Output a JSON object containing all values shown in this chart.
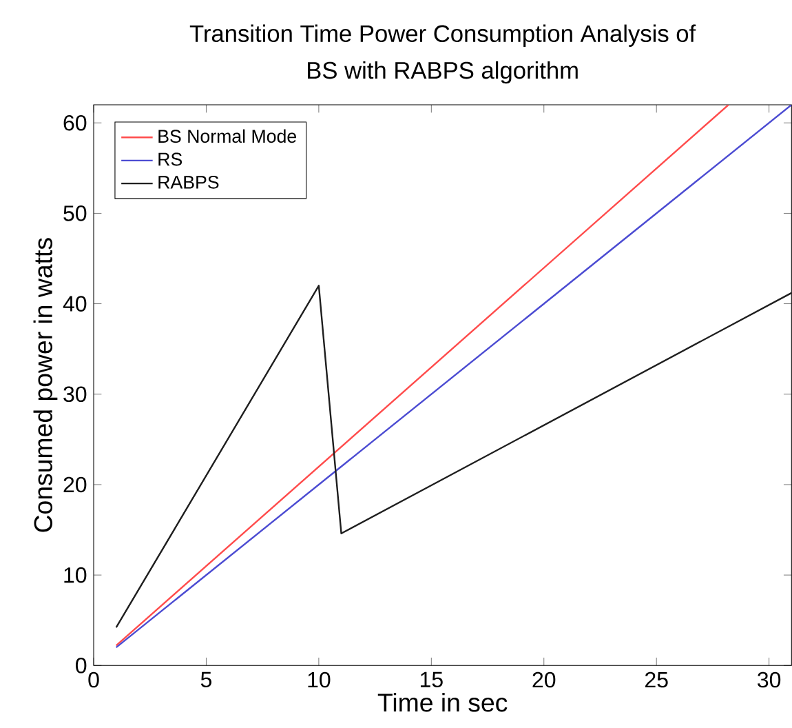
{
  "chart_data": {
    "type": "line",
    "title": "Transition Time Power Consumption Analysis of\nBS with RABPS algorithm",
    "xlabel": "Time in sec",
    "ylabel": "Consumed power in watts",
    "xlim": [
      0,
      31
    ],
    "ylim": [
      0,
      62
    ],
    "xticks": [
      0,
      5,
      10,
      15,
      20,
      25,
      30
    ],
    "yticks": [
      0,
      10,
      20,
      30,
      40,
      50,
      60
    ],
    "grid": false,
    "legend": "top left",
    "series": [
      {
        "name": "BS Normal Mode",
        "color": "#ff4b4b",
        "x": [
          1,
          28.2
        ],
        "values": [
          2.2,
          62
        ]
      },
      {
        "name": "RS",
        "color": "#4b4bd2",
        "x": [
          1,
          31
        ],
        "values": [
          2,
          62
        ]
      },
      {
        "name": "RABPS",
        "color": "#1e1e1e",
        "x": [
          1,
          10,
          11,
          31
        ],
        "values": [
          4.2,
          42,
          14.6,
          41.2
        ]
      }
    ]
  }
}
